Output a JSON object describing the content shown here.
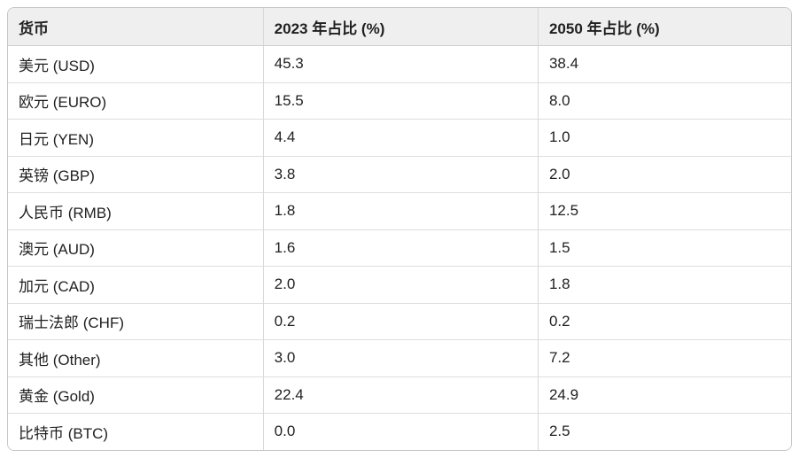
{
  "chart_data": {
    "type": "table",
    "columns": [
      "货币",
      "2023 年占比 (%)",
      "2050 年占比 (%)"
    ],
    "rows": [
      [
        "美元 (USD)",
        "45.3",
        "38.4"
      ],
      [
        "欧元 (EURO)",
        "15.5",
        "8.0"
      ],
      [
        "日元 (YEN)",
        "4.4",
        "1.0"
      ],
      [
        "英镑 (GBP)",
        "3.8",
        "2.0"
      ],
      [
        "人民币 (RMB)",
        "1.8",
        "12.5"
      ],
      [
        "澳元 (AUD)",
        "1.6",
        "1.5"
      ],
      [
        "加元 (CAD)",
        "2.0",
        "1.8"
      ],
      [
        "瑞士法郎 (CHF)",
        "0.2",
        "0.2"
      ],
      [
        "其他 (Other)",
        "3.0",
        "7.2"
      ],
      [
        "黄金 (Gold)",
        "22.4",
        "24.9"
      ],
      [
        "比特币 (BTC)",
        "0.0",
        "2.5"
      ]
    ]
  },
  "colors": {
    "header_bg": "#efefef",
    "outer_border": "#c6c6c6",
    "row_separator": "#dedede",
    "column_separator": "#d8d8d8",
    "text": "#1f1f1f",
    "row_bg": "#ffffff"
  }
}
